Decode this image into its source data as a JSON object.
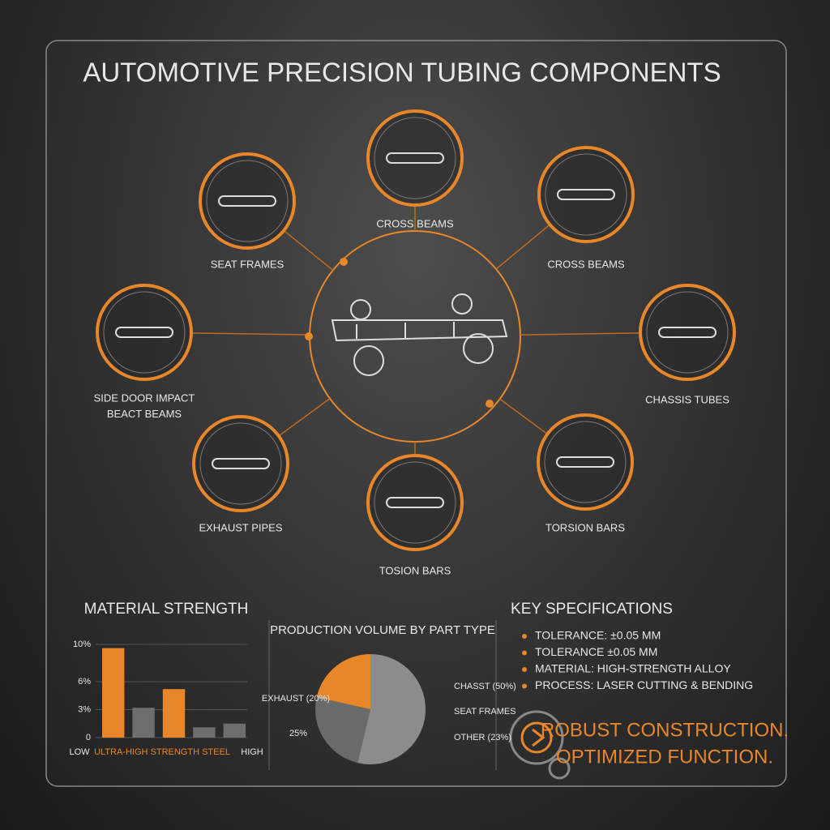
{
  "title": "AUTOMOTIVE PRECISION TUBING COMPONENTS",
  "nodes": [
    {
      "label": "CROSS BEAMS"
    },
    {
      "label": "CROSS BEAMS"
    },
    {
      "label": "CHASSIS TUBES"
    },
    {
      "label": "TORSION BARS"
    },
    {
      "label": "TOSION BARS"
    },
    {
      "label": "EXHAUST PIPES"
    },
    {
      "label": "SIDE DOOR IMPACT BEACT BEAMS"
    },
    {
      "label": "SEAT FRAMES"
    }
  ],
  "charts": [
    {
      "type": "bar",
      "title": "MATERIAL STRENGTH",
      "categories": [
        null,
        null,
        null,
        null,
        null
      ],
      "values": [
        9.6,
        3.2,
        5.2,
        1.1,
        1.5
      ],
      "colors": [
        "#e8872a",
        "#6e6e6e",
        "#e8872a",
        "#6e6e6e",
        "#6e6e6e"
      ],
      "ylim": [
        0,
        10
      ],
      "yticks": [
        {
          "value": 10,
          "label": "10%"
        },
        {
          "value": 6,
          "label": "6%"
        },
        {
          "value": 3,
          "label": "3%"
        },
        0
      ],
      "grid": true,
      "x_label_left": "LOW",
      "x_label_center": "ULTRA-HIGH STRENGTH STEEL",
      "x_label_right": "HIGH"
    },
    {
      "type": "pie",
      "title": "PRODUCTION VOLUME BY PART TYPE",
      "labels": [
        "CHASST (50%)",
        "OTHER (23%)",
        "EXHAUST (20%)"
      ],
      "values": [
        50,
        23,
        20
      ],
      "colors": [
        "#8c8c8c",
        "#6a6a6a",
        "#e8872a"
      ],
      "annotations": [
        "SEAT FRAMES",
        "25%"
      ]
    }
  ],
  "specs": {
    "title": "KEY SPECIFICATIONS",
    "items": [
      "TOLERANCE: ±0.05 MM",
      "TOLERANCE ±0.05 MM",
      "MATERIAL: HIGH-STRENGTH ALLOY",
      "PROCESS: LASER CUTTING & BENDING"
    ]
  },
  "slogan": [
    "ROBUST CONSTRUCTION.",
    "OPTIMIZED FUNCTION."
  ]
}
